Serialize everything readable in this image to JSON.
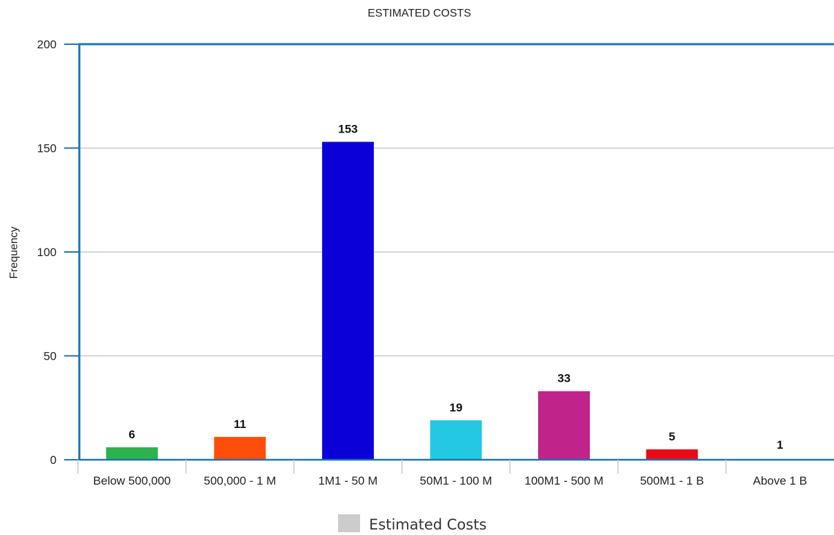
{
  "chart_data": {
    "type": "bar",
    "title": "ESTIMATED COSTS",
    "xlabel": "",
    "ylabel": "Frequency",
    "ylim": [
      0,
      200
    ],
    "yticks": [
      0,
      50,
      100,
      150,
      200
    ],
    "grid": true,
    "legend_position": "bottom",
    "categories": [
      "Below 500,000",
      "500,000 - 1 M",
      "1M1 - 50 M",
      "50M1 - 100 M",
      "100M1 - 500 M",
      "500M1 - 1 B",
      "Above 1 B"
    ],
    "values": [
      6,
      11,
      153,
      19,
      33,
      5,
      1
    ],
    "data_labels": [
      "6",
      "11",
      "153",
      "19",
      "33",
      "5",
      "1"
    ],
    "colors": [
      "#2db24f",
      "#ff4e0a",
      "#0c00d8",
      "#25c8e3",
      "#c0238a",
      "#ea0a14",
      "#8a8a8a"
    ],
    "series": [
      {
        "name": "Estimated Costs",
        "values": [
          6,
          11,
          153,
          19,
          33,
          5,
          1
        ]
      }
    ],
    "legend_swatch_color": "#cccccc",
    "axis_color": "#1a73b8",
    "grid_color": "#c5c9cc"
  }
}
